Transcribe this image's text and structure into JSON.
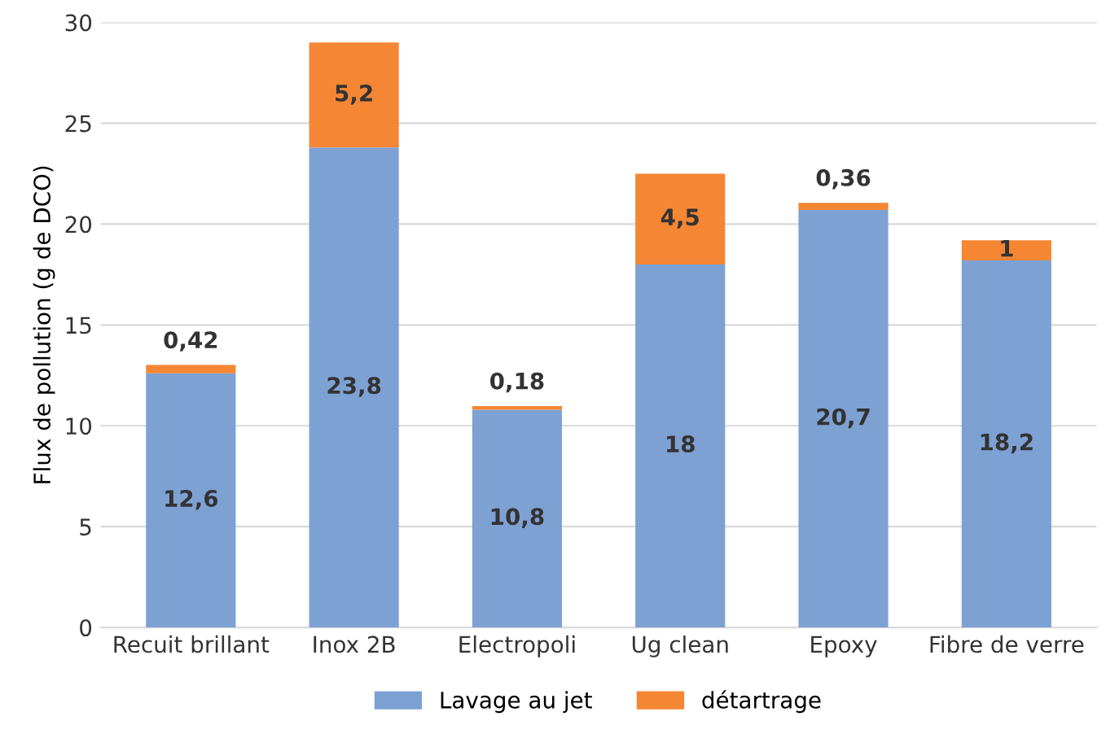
{
  "chart_data": {
    "type": "bar",
    "stacked": true,
    "ylabel": "Flux de pollution (g de DCO)",
    "categories": [
      "Recuit brillant",
      "Inox 2B",
      "Electropoli",
      "Ug clean",
      "Epoxy",
      "Fibre de verre"
    ],
    "series": [
      {
        "name": "Lavage au jet",
        "color": "#7ea1d4",
        "values": [
          12.6,
          23.8,
          10.8,
          18,
          20.7,
          18.2
        ],
        "value_labels": [
          "12,6",
          "23,8",
          "10,8",
          "18",
          "20,7",
          "18,2"
        ]
      },
      {
        "name": "détartrage",
        "color": "#f58634",
        "values": [
          0.42,
          5.2,
          0.18,
          4.5,
          0.36,
          1
        ],
        "value_labels": [
          "0,42",
          "5,2",
          "0,18",
          "4,5",
          "0,36",
          "1"
        ]
      }
    ],
    "ylim": [
      0,
      30
    ],
    "yticks": [
      0,
      5,
      10,
      15,
      20,
      25,
      30
    ],
    "grid": "y",
    "legend": "bottom"
  }
}
